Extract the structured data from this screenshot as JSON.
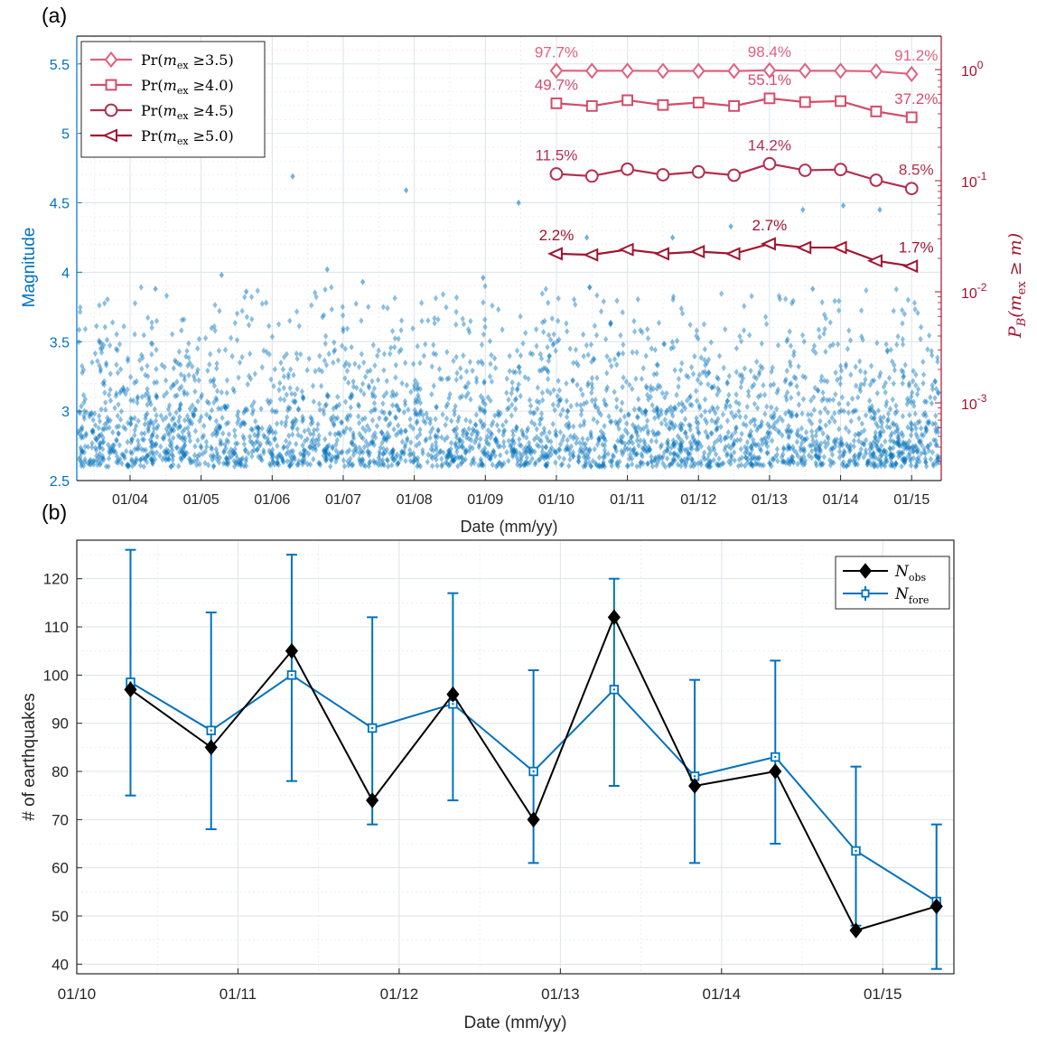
{
  "panel_a_label": "(a)",
  "panel_b_label": "(b)",
  "colors": {
    "magnitude_axis": "#0072BD",
    "scatter": "#0072BD",
    "prob_axis": "#A2142F",
    "pr35": "#E0607E",
    "pr40": "#D44C6A",
    "pr45": "#B42E4E",
    "pr50": "#A2142F",
    "nobs": "#000000",
    "nfore": "#0072BD",
    "grid": "#DCE3EA"
  },
  "chart_data": [
    {
      "type": "scatter",
      "panel": "a",
      "xlabel": "Date (mm/yy)",
      "ylabel_left": "Magnitude",
      "ylabel_right_parts": {
        "P": "P",
        "sub": "B",
        "open": "(m",
        "exsub": "ex",
        "rest": " ≥ m)"
      },
      "x_range": [
        "2003-04-01",
        "2015-06-01"
      ],
      "x_ticks": [
        "01/04",
        "01/05",
        "01/06",
        "01/07",
        "01/08",
        "01/09",
        "01/10",
        "01/11",
        "01/12",
        "01/13",
        "01/14",
        "01/15"
      ],
      "ylim_left": [
        2.5,
        5.7
      ],
      "yticks_left": [
        "2.5",
        "3",
        "3.5",
        "4",
        "4.5",
        "5",
        "5.5"
      ],
      "right_axis_scale": "log",
      "ylim_right": [
        0.0002,
        2.0
      ],
      "yticks_right": [
        {
          "value": 1.0,
          "base": "10",
          "exp": "0"
        },
        {
          "value": 0.1,
          "base": "10",
          "exp": "-1"
        },
        {
          "value": 0.01,
          "base": "10",
          "exp": "-2"
        },
        {
          "value": 0.001,
          "base": "10",
          "exp": "-3"
        }
      ],
      "grid": true,
      "legend_position": "top-left",
      "scatter_points": {
        "name": "earthquake magnitudes",
        "magnitude_range": [
          2.6,
          4.7
        ],
        "notable_events": [
          {
            "date": "2006-04-15",
            "m": 4.69
          },
          {
            "date": "2007-11-20",
            "m": 4.59
          },
          {
            "date": "2009-06-20",
            "m": 4.5
          },
          {
            "date": "2006-10-10",
            "m": 4.02
          },
          {
            "date": "2005-04-15",
            "m": 3.98
          },
          {
            "date": "2008-12-20",
            "m": 3.96
          },
          {
            "date": "2007-04-10",
            "m": 3.93
          },
          {
            "date": "2014-01-15",
            "m": 4.48
          },
          {
            "date": "2014-07-20",
            "m": 4.45
          },
          {
            "date": "2012-06-15",
            "m": 4.33
          },
          {
            "date": "2013-06-20",
            "m": 4.45
          },
          {
            "date": "2011-08-20",
            "m": 4.25
          },
          {
            "date": "2010-06-05",
            "m": 4.25
          },
          {
            "date": "2004-05-10",
            "m": 3.88
          },
          {
            "date": "2005-08-20",
            "m": 3.86
          },
          {
            "date": "2013-08-10",
            "m": 3.88
          }
        ]
      },
      "series": [
        {
          "name_parts": {
            "pre": "Pr(",
            "m": "m",
            "sub": "ex",
            "post": " ≥3.5)"
          },
          "marker": "diamond",
          "x": [
            "2010-01-01",
            "2010-07-01",
            "2011-01-01",
            "2011-07-01",
            "2012-01-01",
            "2012-07-01",
            "2013-01-01",
            "2013-07-01",
            "2014-01-01",
            "2014-07-01",
            "2015-01-01"
          ],
          "values": [
            0.977,
            0.975,
            0.976,
            0.972,
            0.973,
            0.971,
            0.984,
            0.975,
            0.975,
            0.965,
            0.912
          ]
        },
        {
          "name_parts": {
            "pre": "Pr(",
            "m": "m",
            "sub": "ex",
            "post": " ≥4.0)"
          },
          "marker": "square",
          "x": [
            "2010-01-01",
            "2010-07-01",
            "2011-01-01",
            "2011-07-01",
            "2012-01-01",
            "2012-07-01",
            "2013-01-01",
            "2013-07-01",
            "2014-01-01",
            "2014-07-01",
            "2015-01-01"
          ],
          "values": [
            0.497,
            0.47,
            0.53,
            0.48,
            0.505,
            0.47,
            0.551,
            0.51,
            0.52,
            0.42,
            0.372
          ]
        },
        {
          "name_parts": {
            "pre": "Pr(",
            "m": "m",
            "sub": "ex",
            "post": " ≥4.5)"
          },
          "marker": "circle",
          "x": [
            "2010-01-01",
            "2010-07-01",
            "2011-01-01",
            "2011-07-01",
            "2012-01-01",
            "2012-07-01",
            "2013-01-01",
            "2013-07-01",
            "2014-01-01",
            "2014-07-01",
            "2015-01-01"
          ],
          "values": [
            0.115,
            0.11,
            0.127,
            0.113,
            0.12,
            0.112,
            0.142,
            0.124,
            0.126,
            0.101,
            0.085
          ]
        },
        {
          "name_parts": {
            "pre": "Pr(",
            "m": "m",
            "sub": "ex",
            "post": " ≥5.0)"
          },
          "marker": "triangle-left",
          "x": [
            "2010-01-01",
            "2010-07-01",
            "2011-01-01",
            "2011-07-01",
            "2012-01-01",
            "2012-07-01",
            "2013-01-01",
            "2013-07-01",
            "2014-01-01",
            "2014-07-01",
            "2015-01-01"
          ],
          "values": [
            0.022,
            0.0215,
            0.024,
            0.022,
            0.023,
            0.022,
            0.027,
            0.025,
            0.025,
            0.019,
            0.017
          ]
        }
      ],
      "annotations": [
        {
          "text": "97.7%",
          "series": 0,
          "date": "2010-01-01"
        },
        {
          "text": "98.4%",
          "series": 0,
          "date": "2013-01-01"
        },
        {
          "text": "91.2%",
          "series": 0,
          "date": "2015-01-01"
        },
        {
          "text": "49.7%",
          "series": 1,
          "date": "2010-01-01"
        },
        {
          "text": "55.1%",
          "series": 1,
          "date": "2013-01-01"
        },
        {
          "text": "37.2%",
          "series": 1,
          "date": "2015-01-01"
        },
        {
          "text": "11.5%",
          "series": 2,
          "date": "2010-01-01"
        },
        {
          "text": "14.2%",
          "series": 2,
          "date": "2013-01-01"
        },
        {
          "text": "8.5%",
          "series": 2,
          "date": "2015-01-01"
        },
        {
          "text": "2.2%",
          "series": 3,
          "date": "2010-01-01"
        },
        {
          "text": "2.7%",
          "series": 3,
          "date": "2013-01-01"
        },
        {
          "text": "1.7%",
          "series": 3,
          "date": "2015-01-01"
        }
      ]
    },
    {
      "type": "line",
      "panel": "b",
      "xlabel": "Date (mm/yy)",
      "ylabel": "# of earthquakes",
      "x_range": [
        "2010-01-01",
        "2015-06-10"
      ],
      "x_ticks": [
        "01/10",
        "01/11",
        "01/12",
        "01/13",
        "01/14",
        "01/15"
      ],
      "ylim": [
        38,
        128
      ],
      "yticks": [
        "40",
        "50",
        "60",
        "70",
        "80",
        "90",
        "100",
        "110",
        "120"
      ],
      "grid": true,
      "legend_position": "top-right",
      "x": [
        "2010-05-01",
        "2010-11-01",
        "2011-05-01",
        "2011-11-01",
        "2012-05-01",
        "2012-11-01",
        "2013-05-01",
        "2013-11-01",
        "2014-05-01",
        "2014-11-01",
        "2015-05-01"
      ],
      "series": [
        {
          "name_parts": {
            "main": "N",
            "sub": "obs"
          },
          "marker": "diamond",
          "values": [
            97,
            85,
            105,
            74,
            96,
            70,
            112,
            77,
            80,
            47,
            52
          ]
        },
        {
          "name_parts": {
            "main": "N",
            "sub": "fore"
          },
          "marker": "square",
          "values": [
            98.5,
            88.5,
            100,
            89,
            94,
            80,
            97,
            79,
            83,
            63.5,
            53
          ],
          "error_low": [
            75,
            68,
            78,
            69,
            74,
            61,
            77,
            61,
            65,
            48,
            39
          ],
          "error_high": [
            126,
            113,
            125,
            112,
            117,
            101,
            120,
            99,
            103,
            81,
            69
          ]
        }
      ]
    }
  ]
}
